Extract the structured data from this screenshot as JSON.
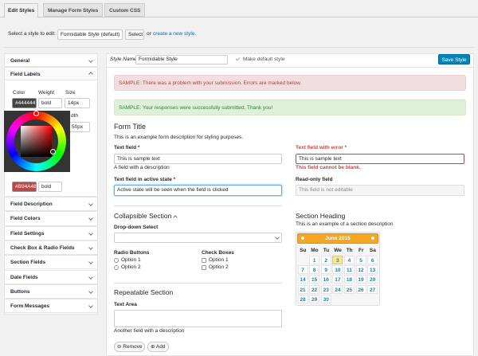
{
  "tabs": [
    "Edit Styles",
    "Manage Form Styles",
    "Custom CSS"
  ],
  "style_select": {
    "label": "Select a style to edit:",
    "selected": "Formidable Style (default)",
    "button": "Select",
    "or": "or",
    "link": "create a new style."
  },
  "sidebar": {
    "sections": [
      "General",
      "Field Labels",
      "Field Description",
      "Field Colors",
      "Field Settings",
      "Check Box & Radio Fields",
      "Section Fields",
      "Date Fields",
      "Buttons",
      "Form Messages"
    ],
    "field_labels": {
      "color_label": "Color",
      "weight_label": "Weight",
      "size_label": "Size",
      "color": "#444444",
      "weight": "bold",
      "size": "14px",
      "width_partial": "dth",
      "width_value": "50px",
      "error_color": "#B94A48",
      "error_weight": "bold"
    }
  },
  "editor": {
    "style_name_label": "Style Name",
    "style_name": "Formidable Style",
    "default_label": "Make default style",
    "save": "Save Style",
    "error_message": "SAMPLE: There was a problem with your submission. Errors are marked below.",
    "success_message": "SAMPLE: Your responses were successfully submitted. Thank you!",
    "form_title": "Form Title",
    "form_description": "This is an example form description for styling purposes.",
    "text_field": {
      "label": "Text field",
      "required": "*",
      "value": "This is sample text",
      "description": "A field with a description"
    },
    "active_field": {
      "label": "Text field in active state",
      "required": "*",
      "value": "Active state will be seen when the field is clicked"
    },
    "error_field": {
      "label": "Text field with error",
      "required": "*",
      "value": "This is sample text",
      "error": "This field cannot be blank."
    },
    "readonly_field": {
      "label": "Read-only field",
      "value": "This field is not editable"
    },
    "collapsible": {
      "title": "Collapsible Section",
      "dropdown_label": "Drop-down Select",
      "radio_label": "Radio Buttons",
      "radio_options": [
        "Option 1",
        "Option 2"
      ],
      "checkbox_label": "Check Boxes",
      "checkbox_options": [
        "Option 1",
        "Option 2"
      ]
    },
    "repeatable": {
      "title": "Repeatable Section",
      "textarea_label": "Text Area",
      "description": "Another field with a description",
      "remove": "Remove",
      "add": "Add"
    },
    "section_heading": {
      "title": "Section Heading",
      "description": "This is an example of a section description"
    },
    "calendar": {
      "month": "June 2015",
      "weekdays": [
        "Su",
        "Mo",
        "Tu",
        "We",
        "Th",
        "Fr",
        "Sa"
      ],
      "days": [
        1,
        2,
        3,
        4,
        5,
        6,
        7,
        8,
        9,
        10,
        11,
        12,
        13,
        14,
        15,
        16,
        17,
        18,
        19,
        20,
        21,
        22,
        23,
        24,
        25,
        26,
        27,
        28,
        29,
        30
      ]
    }
  }
}
